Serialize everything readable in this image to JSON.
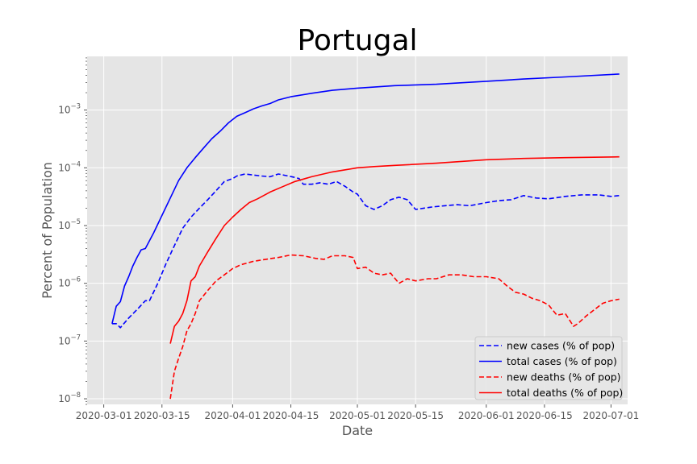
{
  "chart_data": {
    "type": "line",
    "title": "Portugal",
    "xlabel": "Date",
    "ylabel": "Percent of Population",
    "yscale": "log",
    "ylim": [
      8e-09,
      0.0085
    ],
    "xlim": [
      "2020-02-26",
      "2020-07-05"
    ],
    "grid": true,
    "legend_position": "lower-right",
    "x_ticks": [
      "2020-03-01",
      "2020-03-15",
      "2020-04-01",
      "2020-04-15",
      "2020-05-01",
      "2020-05-15",
      "2020-06-01",
      "2020-06-15",
      "2020-07-01"
    ],
    "y_ticks": [
      {
        "value": 1e-08,
        "base": "10",
        "exp": "−8"
      },
      {
        "value": 1e-07,
        "base": "10",
        "exp": "−7"
      },
      {
        "value": 1e-06,
        "base": "10",
        "exp": "−6"
      },
      {
        "value": 1e-05,
        "base": "10",
        "exp": "−5"
      },
      {
        "value": 0.0001,
        "base": "10",
        "exp": "−4"
      },
      {
        "value": 0.001,
        "base": "10",
        "exp": "−3"
      }
    ],
    "series": [
      {
        "name": "new cases (% of pop)",
        "color": "#0000ff",
        "dash": "dashed",
        "points": [
          [
            "2020-03-03",
            2e-07
          ],
          [
            "2020-03-04",
            2e-07
          ],
          [
            "2020-03-05",
            1.7e-07
          ],
          [
            "2020-03-07",
            2.5e-07
          ],
          [
            "2020-03-09",
            3.5e-07
          ],
          [
            "2020-03-11",
            5e-07
          ],
          [
            "2020-03-12",
            5e-07
          ],
          [
            "2020-03-14",
            1e-06
          ],
          [
            "2020-03-16",
            2.2e-06
          ],
          [
            "2020-03-18",
            4.5e-06
          ],
          [
            "2020-03-20",
            9e-06
          ],
          [
            "2020-03-22",
            1.4e-05
          ],
          [
            "2020-03-24",
            2e-05
          ],
          [
            "2020-03-26",
            2.8e-05
          ],
          [
            "2020-03-28",
            4e-05
          ],
          [
            "2020-03-30",
            5.8e-05
          ],
          [
            "2020-04-01",
            6.5e-05
          ],
          [
            "2020-04-02",
            7.2e-05
          ],
          [
            "2020-04-04",
            7.8e-05
          ],
          [
            "2020-04-06",
            7.5e-05
          ],
          [
            "2020-04-08",
            7.2e-05
          ],
          [
            "2020-04-10",
            7e-05
          ],
          [
            "2020-04-12",
            7.8e-05
          ],
          [
            "2020-04-14",
            7.3e-05
          ],
          [
            "2020-04-16",
            6.8e-05
          ],
          [
            "2020-04-17",
            6.5e-05
          ],
          [
            "2020-04-18",
            5.2e-05
          ],
          [
            "2020-04-20",
            5.2e-05
          ],
          [
            "2020-04-22",
            5.5e-05
          ],
          [
            "2020-04-24",
            5.2e-05
          ],
          [
            "2020-04-26",
            5.8e-05
          ],
          [
            "2020-04-28",
            4.8e-05
          ],
          [
            "2020-04-30",
            3.8e-05
          ],
          [
            "2020-05-01",
            3.5e-05
          ],
          [
            "2020-05-03",
            2.2e-05
          ],
          [
            "2020-05-05",
            1.9e-05
          ],
          [
            "2020-05-07",
            2.2e-05
          ],
          [
            "2020-05-09",
            2.8e-05
          ],
          [
            "2020-05-11",
            3.1e-05
          ],
          [
            "2020-05-13",
            2.8e-05
          ],
          [
            "2020-05-15",
            1.9e-05
          ],
          [
            "2020-05-17",
            2e-05
          ],
          [
            "2020-05-19",
            2.1e-05
          ],
          [
            "2020-05-22",
            2.2e-05
          ],
          [
            "2020-05-25",
            2.3e-05
          ],
          [
            "2020-05-28",
            2.2e-05
          ],
          [
            "2020-06-01",
            2.5e-05
          ],
          [
            "2020-06-04",
            2.7e-05
          ],
          [
            "2020-06-07",
            2.8e-05
          ],
          [
            "2020-06-10",
            3.3e-05
          ],
          [
            "2020-06-13",
            3e-05
          ],
          [
            "2020-06-16",
            2.9e-05
          ],
          [
            "2020-06-20",
            3.2e-05
          ],
          [
            "2020-06-24",
            3.4e-05
          ],
          [
            "2020-06-28",
            3.4e-05
          ],
          [
            "2020-07-01",
            3.2e-05
          ],
          [
            "2020-07-03",
            3.3e-05
          ]
        ]
      },
      {
        "name": "total cases (% of pop)",
        "color": "#0000ff",
        "dash": "solid",
        "points": [
          [
            "2020-03-03",
            2e-07
          ],
          [
            "2020-03-04",
            4e-07
          ],
          [
            "2020-03-05",
            4.8e-07
          ],
          [
            "2020-03-06",
            9e-07
          ],
          [
            "2020-03-07",
            1.3e-06
          ],
          [
            "2020-03-08",
            2e-06
          ],
          [
            "2020-03-09",
            2.8e-06
          ],
          [
            "2020-03-10",
            3.8e-06
          ],
          [
            "2020-03-11",
            4e-06
          ],
          [
            "2020-03-13",
            7.5e-06
          ],
          [
            "2020-03-15",
            1.5e-05
          ],
          [
            "2020-03-17",
            3e-05
          ],
          [
            "2020-03-19",
            6e-05
          ],
          [
            "2020-03-21",
            0.0001
          ],
          [
            "2020-03-23",
            0.00015
          ],
          [
            "2020-03-25",
            0.00022
          ],
          [
            "2020-03-27",
            0.00032
          ],
          [
            "2020-03-29",
            0.00043
          ],
          [
            "2020-03-31",
            0.0006
          ],
          [
            "2020-04-02",
            0.00078
          ],
          [
            "2020-04-04",
            0.0009
          ],
          [
            "2020-04-06",
            0.00105
          ],
          [
            "2020-04-08",
            0.00118
          ],
          [
            "2020-04-10",
            0.0013
          ],
          [
            "2020-04-12",
            0.0015
          ],
          [
            "2020-04-15",
            0.0017
          ],
          [
            "2020-04-20",
            0.00195
          ],
          [
            "2020-04-25",
            0.0022
          ],
          [
            "2020-05-01",
            0.0024
          ],
          [
            "2020-05-05",
            0.0025
          ],
          [
            "2020-05-10",
            0.00265
          ],
          [
            "2020-05-20",
            0.0028
          ],
          [
            "2020-06-01",
            0.00315
          ],
          [
            "2020-06-10",
            0.00345
          ],
          [
            "2020-06-20",
            0.00375
          ],
          [
            "2020-07-03",
            0.0042
          ]
        ]
      },
      {
        "name": "new deaths (% of pop)",
        "color": "#ff0000",
        "dash": "dashed",
        "points": [
          [
            "2020-03-17",
            1e-08
          ],
          [
            "2020-03-18",
            3e-08
          ],
          [
            "2020-03-19",
            5e-08
          ],
          [
            "2020-03-20",
            8e-08
          ],
          [
            "2020-03-21",
            1.5e-07
          ],
          [
            "2020-03-22",
            2e-07
          ],
          [
            "2020-03-23",
            3e-07
          ],
          [
            "2020-03-24",
            5e-07
          ],
          [
            "2020-03-26",
            7.5e-07
          ],
          [
            "2020-03-28",
            1.1e-06
          ],
          [
            "2020-03-30",
            1.4e-06
          ],
          [
            "2020-04-01",
            1.8e-06
          ],
          [
            "2020-04-03",
            2.1e-06
          ],
          [
            "2020-04-06",
            2.4e-06
          ],
          [
            "2020-04-09",
            2.6e-06
          ],
          [
            "2020-04-12",
            2.8e-06
          ],
          [
            "2020-04-15",
            3.1e-06
          ],
          [
            "2020-04-18",
            3e-06
          ],
          [
            "2020-04-21",
            2.7e-06
          ],
          [
            "2020-04-23",
            2.6e-06
          ],
          [
            "2020-04-25",
            3e-06
          ],
          [
            "2020-04-28",
            3e-06
          ],
          [
            "2020-04-30",
            2.8e-06
          ],
          [
            "2020-05-01",
            1.8e-06
          ],
          [
            "2020-05-03",
            1.9e-06
          ],
          [
            "2020-05-05",
            1.5e-06
          ],
          [
            "2020-05-07",
            1.4e-06
          ],
          [
            "2020-05-09",
            1.5e-06
          ],
          [
            "2020-05-11",
            1e-06
          ],
          [
            "2020-05-13",
            1.2e-06
          ],
          [
            "2020-05-15",
            1.1e-06
          ],
          [
            "2020-05-18",
            1.2e-06
          ],
          [
            "2020-05-20",
            1.2e-06
          ],
          [
            "2020-05-23",
            1.4e-06
          ],
          [
            "2020-05-26",
            1.4e-06
          ],
          [
            "2020-05-29",
            1.3e-06
          ],
          [
            "2020-06-01",
            1.3e-06
          ],
          [
            "2020-06-04",
            1.2e-06
          ],
          [
            "2020-06-06",
            9e-07
          ],
          [
            "2020-06-08",
            7e-07
          ],
          [
            "2020-06-10",
            6.5e-07
          ],
          [
            "2020-06-12",
            5.5e-07
          ],
          [
            "2020-06-14",
            5e-07
          ],
          [
            "2020-06-16",
            4.2e-07
          ],
          [
            "2020-06-18",
            2.8e-07
          ],
          [
            "2020-06-20",
            3e-07
          ],
          [
            "2020-06-22",
            1.8e-07
          ],
          [
            "2020-06-23",
            2e-07
          ],
          [
            "2020-06-25",
            2.7e-07
          ],
          [
            "2020-06-27",
            3.5e-07
          ],
          [
            "2020-06-29",
            4.5e-07
          ],
          [
            "2020-07-01",
            5e-07
          ],
          [
            "2020-07-03",
            5.3e-07
          ]
        ]
      },
      {
        "name": "total deaths (% of pop)",
        "color": "#ff0000",
        "dash": "solid",
        "points": [
          [
            "2020-03-17",
            9e-08
          ],
          [
            "2020-03-18",
            1.8e-07
          ],
          [
            "2020-03-19",
            2.2e-07
          ],
          [
            "2020-03-20",
            3e-07
          ],
          [
            "2020-03-21",
            5e-07
          ],
          [
            "2020-03-22",
            1.1e-06
          ],
          [
            "2020-03-23",
            1.3e-06
          ],
          [
            "2020-03-24",
            2e-06
          ],
          [
            "2020-03-26",
            3.5e-06
          ],
          [
            "2020-03-28",
            6e-06
          ],
          [
            "2020-03-30",
            1e-05
          ],
          [
            "2020-04-01",
            1.4e-05
          ],
          [
            "2020-04-03",
            1.9e-05
          ],
          [
            "2020-04-05",
            2.5e-05
          ],
          [
            "2020-04-07",
            2.9e-05
          ],
          [
            "2020-04-10",
            3.8e-05
          ],
          [
            "2020-04-13",
            4.7e-05
          ],
          [
            "2020-04-16",
            5.8e-05
          ],
          [
            "2020-04-20",
            7e-05
          ],
          [
            "2020-04-25",
            8.5e-05
          ],
          [
            "2020-05-01",
            0.0001
          ],
          [
            "2020-05-05",
            0.000105
          ],
          [
            "2020-05-10",
            0.00011
          ],
          [
            "2020-05-20",
            0.00012
          ],
          [
            "2020-06-01",
            0.000138
          ],
          [
            "2020-06-10",
            0.000145
          ],
          [
            "2020-06-20",
            0.00015
          ],
          [
            "2020-07-03",
            0.000155
          ]
        ]
      }
    ]
  }
}
